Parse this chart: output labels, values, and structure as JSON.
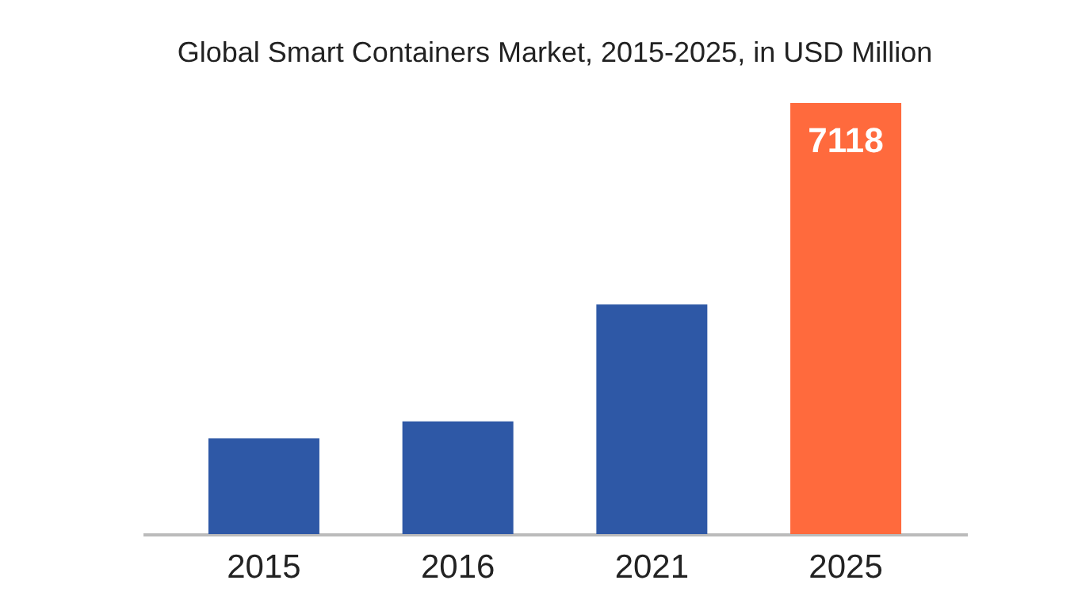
{
  "chart_data": {
    "type": "bar",
    "title": "Global Smart Containers Market, 2015-2025, in USD Million",
    "categories": [
      "2015",
      "2016",
      "2021",
      "2025"
    ],
    "values": [
      1580,
      1860,
      3790,
      7118
    ],
    "colors": [
      "#2e58a6",
      "#2e58a6",
      "#2e58a6",
      "#ff6a3d"
    ],
    "value_labels": [
      null,
      null,
      null,
      "7118"
    ]
  }
}
